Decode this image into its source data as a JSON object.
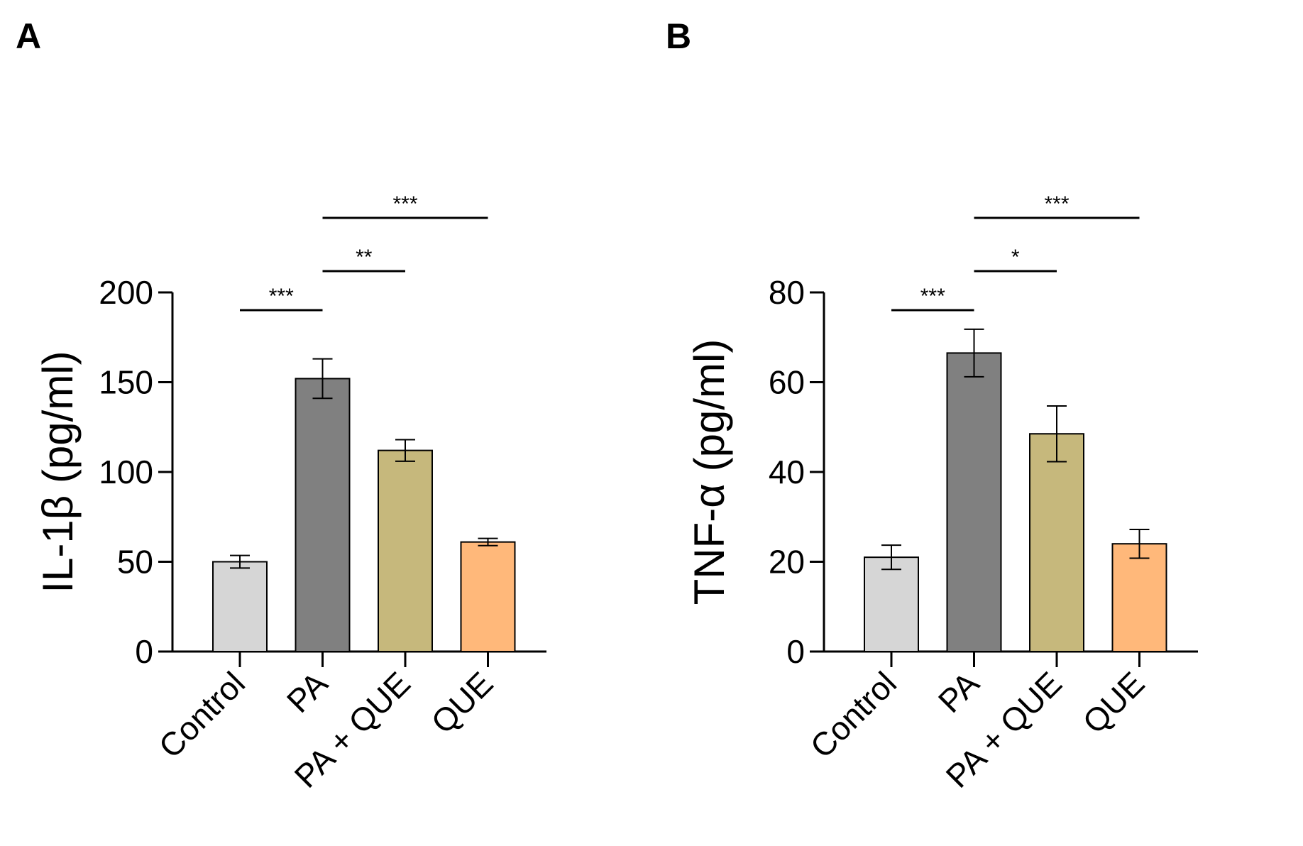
{
  "chart_data": [
    {
      "type": "bar",
      "panel_label": "A",
      "ylabel": "IL-1β (pg/ml)",
      "xlabel": "",
      "ylim": [
        0,
        200
      ],
      "yticks": [
        "0",
        "50",
        "100",
        "150",
        "200"
      ],
      "categories": [
        "Control",
        "PA",
        "PA + QUE",
        "QUE"
      ],
      "values": [
        50,
        152,
        112,
        61
      ],
      "errors": [
        3.5,
        11,
        6,
        2
      ],
      "colors": [
        "#d6d6d6",
        "#808080",
        "#c6b87c",
        "#ffb87a"
      ],
      "significance": [
        {
          "from": 0,
          "to": 1,
          "label": "***",
          "level": 0
        },
        {
          "from": 1,
          "to": 2,
          "label": "**",
          "level": 1
        },
        {
          "from": 1,
          "to": 3,
          "label": "***",
          "level": 2
        }
      ]
    },
    {
      "type": "bar",
      "panel_label": "B",
      "ylabel": "TNF-α (pg/ml)",
      "xlabel": "",
      "ylim": [
        0,
        80
      ],
      "yticks": [
        "0",
        "20",
        "40",
        "60",
        "80"
      ],
      "categories": [
        "Control",
        "PA",
        "PA + QUE",
        "QUE"
      ],
      "values": [
        21,
        66.5,
        48.5,
        24
      ],
      "errors": [
        2.7,
        5.3,
        6.2,
        3.2
      ],
      "colors": [
        "#d6d6d6",
        "#808080",
        "#c6b87c",
        "#ffb87a"
      ],
      "significance": [
        {
          "from": 0,
          "to": 1,
          "label": "***",
          "level": 0
        },
        {
          "from": 1,
          "to": 2,
          "label": "*",
          "level": 1
        },
        {
          "from": 1,
          "to": 3,
          "label": "***",
          "level": 2
        }
      ]
    }
  ]
}
